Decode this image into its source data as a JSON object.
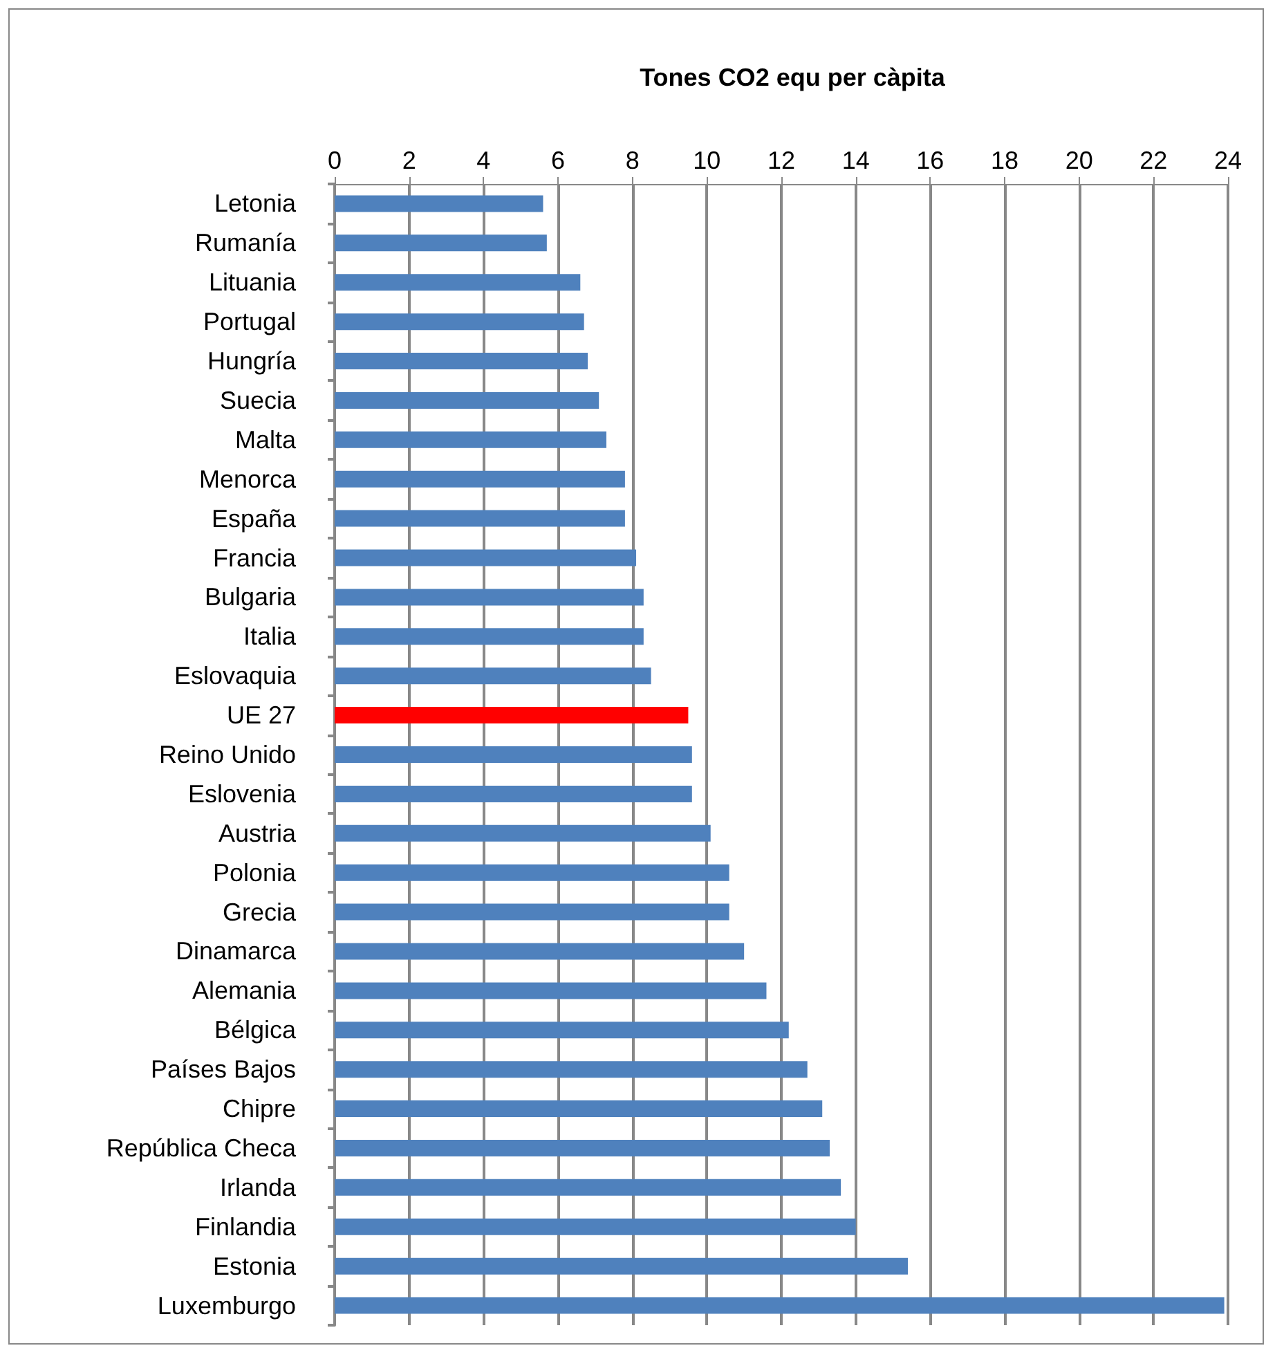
{
  "chart_data": {
    "type": "bar",
    "orientation": "horizontal",
    "title": "Tones CO2 equ per càpita",
    "categories": [
      "Letonia",
      "Rumanía",
      "Lituania",
      "Portugal",
      "Hungría",
      "Suecia",
      "Malta",
      "Menorca",
      "España",
      "Francia",
      "Bulgaria",
      "Italia",
      "Eslovaquia",
      "UE 27",
      "Reino Unido",
      "Eslovenia",
      "Austria",
      "Polonia",
      "Grecia",
      "Dinamarca",
      "Alemania",
      "Bélgica",
      "Países Bajos",
      "Chipre",
      "República Checa",
      "Irlanda",
      "Finlandia",
      "Estonia",
      "Luxemburgo"
    ],
    "values": [
      5.6,
      5.7,
      6.6,
      6.7,
      6.8,
      7.1,
      7.3,
      7.8,
      7.8,
      8.1,
      8.3,
      8.3,
      8.5,
      9.5,
      9.6,
      9.6,
      10.1,
      10.6,
      10.6,
      11.0,
      11.6,
      12.2,
      12.7,
      13.1,
      13.3,
      13.6,
      14.0,
      15.4,
      23.9
    ],
    "colors": [
      "#4f81bd",
      "#4f81bd",
      "#4f81bd",
      "#4f81bd",
      "#4f81bd",
      "#4f81bd",
      "#4f81bd",
      "#4f81bd",
      "#4f81bd",
      "#4f81bd",
      "#4f81bd",
      "#4f81bd",
      "#4f81bd",
      "#ff0000",
      "#4f81bd",
      "#4f81bd",
      "#4f81bd",
      "#4f81bd",
      "#4f81bd",
      "#4f81bd",
      "#4f81bd",
      "#4f81bd",
      "#4f81bd",
      "#4f81bd",
      "#4f81bd",
      "#4f81bd",
      "#4f81bd",
      "#4f81bd",
      "#4f81bd"
    ],
    "xlim": [
      0,
      24
    ],
    "xticks": [
      0,
      2,
      4,
      6,
      8,
      10,
      12,
      14,
      16,
      18,
      20,
      22,
      24
    ],
    "grid": "x"
  }
}
